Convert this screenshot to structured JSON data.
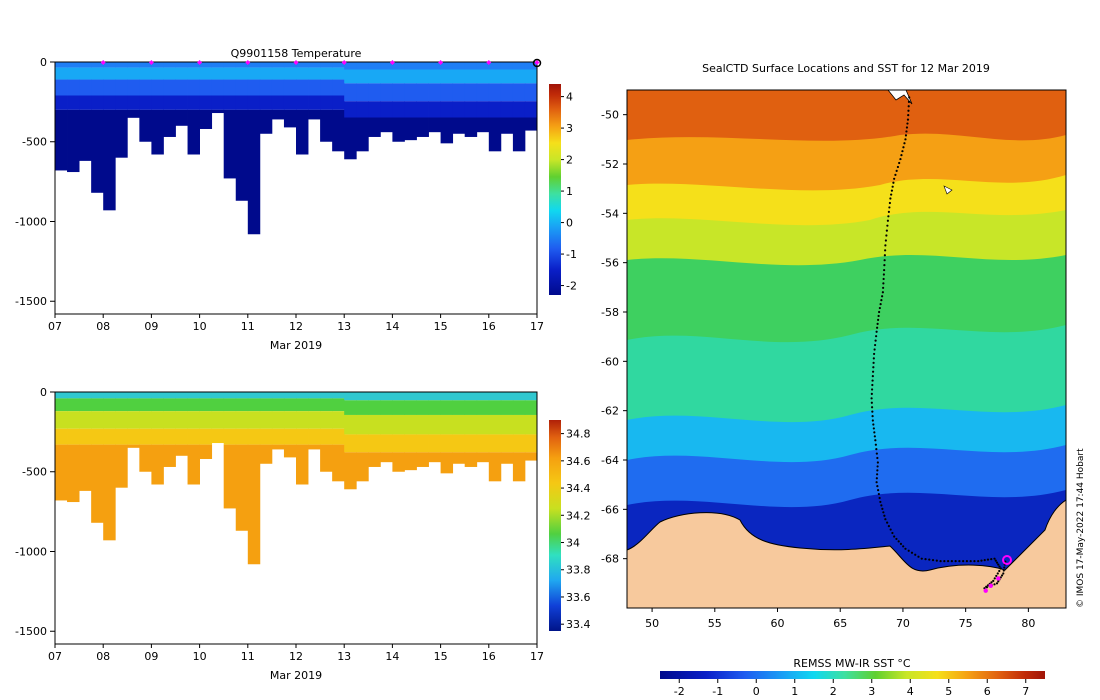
{
  "colors": {
    "temp_scale": [
      "#000a8c",
      "#0a1fc8",
      "#1f5cf0",
      "#1aa0f5",
      "#10d8f0",
      "#3ee0a0",
      "#60d030",
      "#c8e628",
      "#f5e01a",
      "#f5a014",
      "#e06010",
      "#c02a08",
      "#a01408"
    ],
    "sal_scale": [
      "#001488",
      "#1040d8",
      "#20a8f0",
      "#30e0c0",
      "#50d040",
      "#c8e020",
      "#f5c814",
      "#f5a010",
      "#e06010",
      "#b02008"
    ],
    "land": "#f7c99d",
    "track": "#000000",
    "marker": "#ff00ff"
  },
  "chart_data": [
    {
      "type": "heatmap",
      "title": "Q9901158  Temperature",
      "xlabel": "Mar 2019",
      "ylabel": "",
      "x_ticks": [
        "07",
        "08",
        "09",
        "10",
        "11",
        "12",
        "13",
        "14",
        "15",
        "16",
        "17"
      ],
      "y_ticks": [
        "0",
        "-500",
        "-1000",
        "-1500"
      ],
      "ylim": [
        -1580,
        0
      ],
      "xlim": [
        7,
        17
      ],
      "colorbar": {
        "ticks": [
          "4",
          "3",
          "2",
          "1",
          "0",
          "-1",
          "-2"
        ],
        "range": [
          -2.3,
          4.4
        ]
      },
      "profile_days": [
        7.0,
        7.25,
        7.5,
        7.75,
        8.0,
        8.25,
        8.5,
        8.75,
        9.0,
        9.25,
        9.5,
        9.75,
        10.0,
        10.25,
        10.5,
        10.75,
        11.0,
        11.25,
        11.5,
        11.75,
        12.0,
        12.25,
        12.5,
        12.75,
        13.0,
        13.25,
        13.5,
        13.75,
        14.0,
        14.25,
        14.5,
        14.75,
        15.0,
        15.25,
        15.5,
        15.75,
        16.0,
        16.25,
        16.5,
        16.75
      ],
      "profile_max_depth": [
        680,
        690,
        620,
        820,
        930,
        600,
        350,
        500,
        580,
        470,
        400,
        580,
        420,
        320,
        730,
        870,
        1080,
        450,
        360,
        410,
        580,
        360,
        500,
        560,
        610,
        560,
        470,
        440,
        500,
        490,
        470,
        440,
        510,
        450,
        470,
        440,
        560,
        450,
        560,
        430
      ],
      "marker_days": [
        8,
        9,
        10,
        11,
        12,
        13,
        14,
        15,
        16,
        17
      ]
    },
    {
      "type": "heatmap",
      "title": "",
      "xlabel": "Mar 2019",
      "ylabel": "",
      "x_ticks": [
        "07",
        "08",
        "09",
        "10",
        "11",
        "12",
        "13",
        "14",
        "15",
        "16",
        "17"
      ],
      "y_ticks": [
        "0",
        "-500",
        "-1000",
        "-1500"
      ],
      "ylim": [
        -1580,
        0
      ],
      "xlim": [
        7,
        17
      ],
      "colorbar": {
        "ticks": [
          "34.8",
          "34.6",
          "34.4",
          "34.2",
          "34",
          "33.8",
          "33.6",
          "33.4"
        ],
        "range": [
          33.35,
          34.9
        ]
      }
    },
    {
      "type": "heatmap",
      "title": "SealCTD Surface Locations and SST for 12 Mar 2019",
      "xlabel": "",
      "ylabel": "",
      "x_ticks": [
        "50",
        "55",
        "60",
        "65",
        "70",
        "75",
        "80"
      ],
      "y_ticks": [
        "-50",
        "-52",
        "-54",
        "-56",
        "-58",
        "-60",
        "-62",
        "-64",
        "-66",
        "-68"
      ],
      "xlim": [
        48,
        83
      ],
      "ylim": [
        -70,
        -49
      ],
      "colorbar": {
        "label": "REMSS MW-IR SST °C",
        "ticks": [
          "-2",
          "-1",
          "0",
          "1",
          "2",
          "3",
          "4",
          "5",
          "6",
          "7"
        ],
        "range": [
          -2.5,
          7.5
        ]
      },
      "credit": "© IMOS 17-May-2022 17:44 Hobart"
    }
  ]
}
